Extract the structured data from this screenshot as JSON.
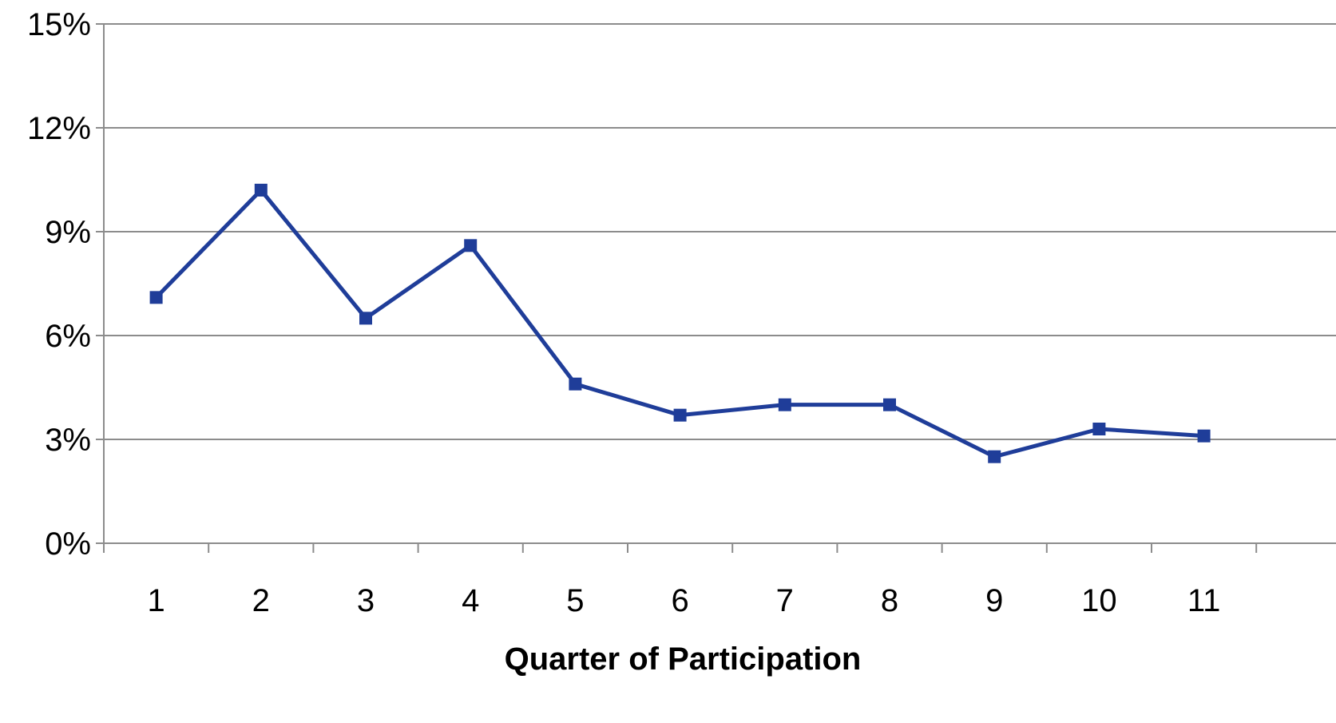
{
  "chart_data": {
    "type": "line",
    "title": "",
    "xlabel": "Quarter of Participation",
    "ylabel": "",
    "categories": [
      "1",
      "2",
      "3",
      "4",
      "5",
      "6",
      "7",
      "8",
      "9",
      "10",
      "11"
    ],
    "series": [
      {
        "values": [
          7.1,
          10.2,
          6.5,
          8.6,
          4.6,
          3.7,
          4.0,
          4.0,
          2.5,
          3.3,
          3.1
        ],
        "color": "#1f3d99",
        "marker": "square"
      }
    ],
    "ylim": [
      0,
      15
    ],
    "yticks": [
      0,
      3,
      6,
      9,
      12,
      15
    ],
    "ytick_labels": [
      "0%",
      "3%",
      "6%",
      "9%",
      "12%",
      "15%"
    ],
    "grid": true,
    "gridline_color": "#8c8c8c",
    "legend": "none"
  }
}
